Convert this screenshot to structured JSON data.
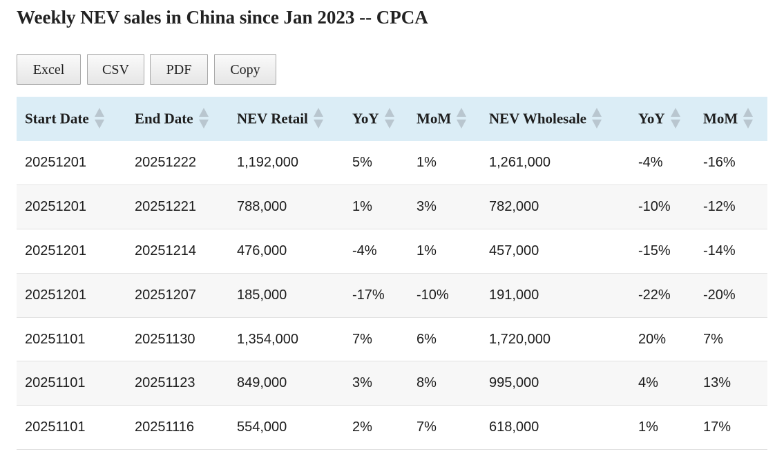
{
  "page": {
    "title": "Weekly NEV sales in China since Jan 2023 -- CPCA"
  },
  "buttons": {
    "excel": "Excel",
    "csv": "CSV",
    "pdf": "PDF",
    "copy": "Copy"
  },
  "table": {
    "headers": [
      "Start Date",
      "End Date",
      "NEV Retail",
      "YoY",
      "MoM",
      "NEV Wholesale",
      "YoY",
      "MoM"
    ],
    "rows": [
      [
        "20251201",
        "20251222",
        "1,192,000",
        "5%",
        "1%",
        "1,261,000",
        "-4%",
        "-16%"
      ],
      [
        "20251201",
        "20251221",
        "788,000",
        "1%",
        "3%",
        "782,000",
        "-10%",
        "-12%"
      ],
      [
        "20251201",
        "20251214",
        "476,000",
        "-4%",
        "1%",
        "457,000",
        "-15%",
        "-14%"
      ],
      [
        "20251201",
        "20251207",
        "185,000",
        "-17%",
        "-10%",
        "191,000",
        "-22%",
        "-20%"
      ],
      [
        "20251101",
        "20251130",
        "1,354,000",
        "7%",
        "6%",
        "1,720,000",
        "20%",
        "7%"
      ],
      [
        "20251101",
        "20251123",
        "849,000",
        "3%",
        "8%",
        "995,000",
        "4%",
        "13%"
      ],
      [
        "20251101",
        "20251116",
        "554,000",
        "2%",
        "7%",
        "618,000",
        "1%",
        "17%"
      ]
    ]
  },
  "colors": {
    "header_background": "#dbedf6",
    "striped_row": "#f7f7f7",
    "sort_icon": "#b9c6cf"
  }
}
